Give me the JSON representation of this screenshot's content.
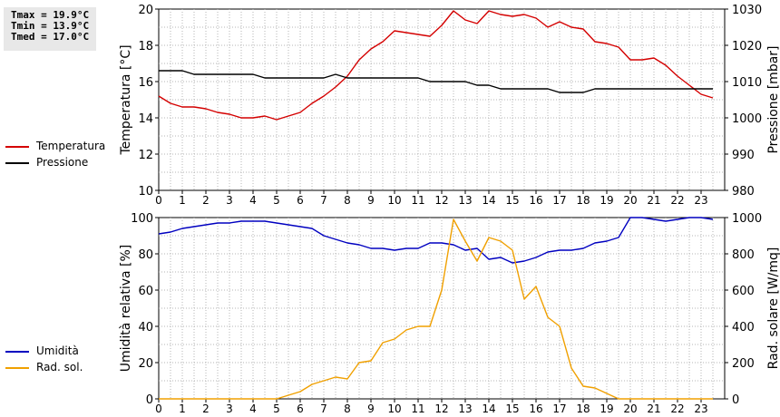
{
  "stats": {
    "tmax": "Tmax = 19.9°C",
    "tmin": "Tmin = 13.9°C",
    "tmed": "Tmed = 17.0°C"
  },
  "colors": {
    "temperature": "#d40000",
    "pressure": "#000000",
    "humidity": "#0000c0",
    "radiation": "#f0a000",
    "grid": "#b4b4b4"
  },
  "chart_data": [
    {
      "type": "line",
      "x_ticks": [
        "0",
        "1",
        "2",
        "3",
        "4",
        "5",
        "6",
        "7",
        "8",
        "9",
        "10",
        "11",
        "12",
        "13",
        "14",
        "15",
        "16",
        "17",
        "18",
        "19",
        "20",
        "21",
        "22",
        "23"
      ],
      "xlim": [
        0,
        24
      ],
      "ylabel": "Temperatura [°C]",
      "ylabel_right": "Pressione [mbar]",
      "ylim": [
        10,
        20
      ],
      "ylim_right": [
        980,
        1030
      ],
      "y_ticks": [
        "10",
        "12",
        "14",
        "16",
        "18",
        "20"
      ],
      "y_ticks_right": [
        "980",
        "990",
        "1000",
        "1010",
        "1020",
        "1030"
      ],
      "grid": true,
      "legend_position": "left",
      "series": [
        {
          "name": "Temperatura",
          "axis": "left",
          "x": [
            0,
            0.5,
            1,
            1.5,
            2,
            2.5,
            3,
            3.5,
            4,
            4.5,
            5,
            5.5,
            6,
            6.5,
            7,
            7.5,
            8,
            8.5,
            9,
            9.5,
            10,
            10.5,
            11,
            11.5,
            12,
            12.5,
            13,
            13.5,
            14,
            14.5,
            15,
            15.5,
            16,
            16.5,
            17,
            17.5,
            18,
            18.5,
            19,
            19.5,
            20,
            20.5,
            21,
            21.5,
            22,
            22.5,
            23,
            23.5
          ],
          "values": [
            15.2,
            14.8,
            14.6,
            14.6,
            14.5,
            14.3,
            14.2,
            14.0,
            14.0,
            14.1,
            13.9,
            14.1,
            14.3,
            14.8,
            15.2,
            15.7,
            16.3,
            17.2,
            17.8,
            18.2,
            18.8,
            18.7,
            18.6,
            18.5,
            19.1,
            19.9,
            19.4,
            19.2,
            19.9,
            19.7,
            19.6,
            19.7,
            19.5,
            19.0,
            19.3,
            19.0,
            18.9,
            18.2,
            18.1,
            17.9,
            17.2,
            17.2,
            17.3,
            16.9,
            16.3,
            15.8,
            15.3,
            15.1
          ]
        },
        {
          "name": "Pressione",
          "axis": "right",
          "x": [
            0,
            0.5,
            1,
            1.5,
            2,
            2.5,
            3,
            3.5,
            4,
            4.5,
            5,
            5.5,
            6,
            6.5,
            7,
            7.5,
            8,
            8.5,
            9,
            9.5,
            10,
            10.5,
            11,
            11.5,
            12,
            12.5,
            13,
            13.5,
            14,
            14.5,
            15,
            15.5,
            16,
            16.5,
            17,
            17.5,
            18,
            18.5,
            19,
            19.5,
            20,
            20.5,
            21,
            21.5,
            22,
            22.5,
            23,
            23.5
          ],
          "values": [
            1013,
            1013,
            1013,
            1012,
            1012,
            1012,
            1012,
            1012,
            1012,
            1011,
            1011,
            1011,
            1011,
            1011,
            1011,
            1012,
            1011,
            1011,
            1011,
            1011,
            1011,
            1011,
            1011,
            1010,
            1010,
            1010,
            1010,
            1009,
            1009,
            1008,
            1008,
            1008,
            1008,
            1008,
            1007,
            1007,
            1007,
            1008,
            1008,
            1008,
            1008,
            1008,
            1008,
            1008,
            1008,
            1008,
            1008,
            1008
          ]
        }
      ]
    },
    {
      "type": "line",
      "x_ticks": [
        "0",
        "1",
        "2",
        "3",
        "4",
        "5",
        "6",
        "7",
        "8",
        "9",
        "10",
        "11",
        "12",
        "13",
        "14",
        "15",
        "16",
        "17",
        "18",
        "19",
        "20",
        "21",
        "22",
        "23"
      ],
      "xlim": [
        0,
        24
      ],
      "ylabel": "Umidità relativa [%]",
      "ylabel_right": "Rad. solare [W/mq]",
      "ylim": [
        0,
        100
      ],
      "ylim_right": [
        0,
        1000
      ],
      "y_ticks": [
        "0",
        "20",
        "40",
        "60",
        "80",
        "100"
      ],
      "y_ticks_right": [
        "0",
        "200",
        "400",
        "600",
        "800",
        "1000"
      ],
      "grid": true,
      "legend_position": "left",
      "series": [
        {
          "name": "Umidità",
          "axis": "left",
          "x": [
            0,
            0.5,
            1,
            1.5,
            2,
            2.5,
            3,
            3.5,
            4,
            4.5,
            5,
            5.5,
            6,
            6.5,
            7,
            7.5,
            8,
            8.5,
            9,
            9.5,
            10,
            10.5,
            11,
            11.5,
            12,
            12.5,
            13,
            13.5,
            14,
            14.5,
            15,
            15.5,
            16,
            16.5,
            17,
            17.5,
            18,
            18.5,
            19,
            19.5,
            20,
            20.5,
            21,
            21.5,
            22,
            22.5,
            23,
            23.5
          ],
          "values": [
            91,
            92,
            94,
            95,
            96,
            97,
            97,
            98,
            98,
            98,
            97,
            96,
            95,
            94,
            90,
            88,
            86,
            85,
            83,
            83,
            82,
            83,
            83,
            86,
            86,
            85,
            82,
            83,
            77,
            78,
            75,
            76,
            78,
            81,
            82,
            82,
            83,
            86,
            87,
            89,
            100,
            100,
            99,
            98,
            99,
            100,
            100,
            99
          ]
        },
        {
          "name": "Rad. sol.",
          "axis": "right",
          "x": [
            0,
            0.5,
            1,
            1.5,
            2,
            2.5,
            3,
            3.5,
            4,
            4.5,
            5,
            5.5,
            6,
            6.5,
            7,
            7.5,
            8,
            8.5,
            9,
            9.5,
            10,
            10.5,
            11,
            11.5,
            12,
            12.5,
            13,
            13.5,
            14,
            14.5,
            15,
            15.5,
            16,
            16.5,
            17,
            17.5,
            18,
            18.5,
            19,
            19.5,
            20,
            20.5,
            21,
            21.5,
            22,
            22.5,
            23,
            23.5
          ],
          "values": [
            0,
            0,
            0,
            0,
            0,
            0,
            0,
            0,
            0,
            0,
            0,
            20,
            40,
            80,
            100,
            120,
            110,
            200,
            210,
            310,
            330,
            380,
            400,
            400,
            600,
            990,
            870,
            760,
            890,
            870,
            820,
            550,
            620,
            450,
            400,
            170,
            70,
            60,
            30,
            0,
            0,
            0,
            0,
            0,
            0,
            0,
            0,
            0
          ]
        }
      ]
    }
  ]
}
